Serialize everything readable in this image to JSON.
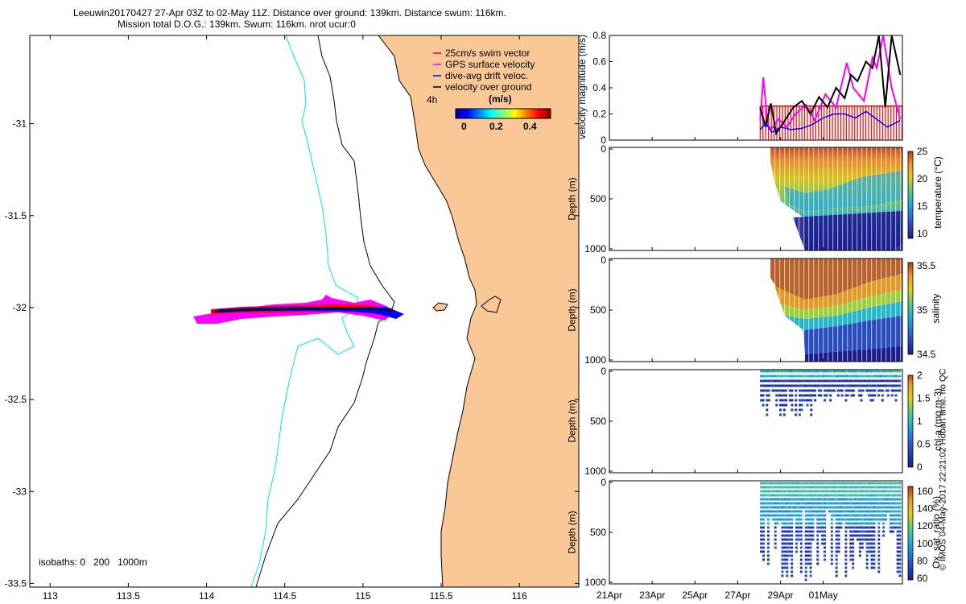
{
  "title": {
    "line1": "Leeuwin20170427 27-Apr 03Z to 02-May 11Z. Distance over ground: 139km. Distance swum: 116km.",
    "line2": "Mission total D.O.G.: 139km. Swum: 116km. nrot ucur:0"
  },
  "colors": {
    "land": "#f9c896",
    "isobath_200": "#00e0ff",
    "swim": "#ff0000",
    "gps": "#ff00ff",
    "drift": "#0000ff",
    "dog": "#000000"
  },
  "chart_data": [
    {
      "type": "map",
      "name": "glider track map",
      "x_ticks": [
        "113",
        "113.5",
        "114",
        "114.5",
        "115",
        "115.5",
        "116"
      ],
      "x_tick_values": [
        113,
        113.5,
        114,
        114.5,
        115,
        115.5,
        116
      ],
      "y_ticks": [
        "-31",
        "-31.5",
        "-32",
        "-32.5",
        "-33",
        "-33.5"
      ],
      "y_tick_values": [
        -31,
        -31.5,
        -32,
        -32.5,
        -33,
        -33.5
      ],
      "xlim": [
        112.87,
        116.38
      ],
      "ylim": [
        -33.52,
        -30.52
      ],
      "legend": [
        {
          "label": "25cm/s swim vector",
          "color": "#ff0000"
        },
        {
          "label": "GPS surface velocity",
          "color": "#ff00ff"
        },
        {
          "label": "dive-avg drift veloc.",
          "color": "#0000ff"
        },
        {
          "label": "velocity over ground",
          "color": "#000000"
        }
      ],
      "legend_extra": "4h",
      "colorbar": {
        "label": "(m/s)",
        "ticks": [
          "0",
          "0.2",
          "0.4"
        ],
        "range": [
          0,
          0.5
        ]
      },
      "isobaths_label": "isobaths: 0   200   1000m",
      "track": {
        "lon_start": 113.93,
        "lon_end": 115.25,
        "lat": -32.01
      }
    },
    {
      "type": "line",
      "name": "velocity magnitude",
      "ylabel": "velocity magnitude (m/s)",
      "ylim": [
        0,
        0.8
      ],
      "y_ticks": [
        "0",
        "0.2",
        "0.4",
        "0.6",
        "0.8"
      ],
      "y_tick_values": [
        0,
        0.2,
        0.4,
        0.6,
        0.8
      ],
      "xlim_days": [
        0,
        13.7
      ],
      "series": [
        {
          "name": "swim",
          "color": "#ff0000",
          "value": 0.26
        },
        {
          "name": "GPS surface velocity",
          "color": "#ff00ff",
          "x": [
            7.05,
            7.2,
            7.4,
            7.55,
            7.9,
            8.3,
            8.7,
            9.2,
            9.6,
            10.1,
            10.6,
            11.1,
            11.4,
            11.5,
            11.9,
            12.3,
            12.5,
            12.8,
            13.2,
            13.6
          ],
          "y": [
            0.15,
            0.48,
            0.12,
            0.08,
            0.16,
            0.1,
            0.2,
            0.27,
            0.15,
            0.35,
            0.25,
            0.59,
            0.4,
            0.38,
            0.3,
            0.63,
            0.55,
            0.8,
            0.4,
            0.16
          ]
        },
        {
          "name": "dive-avg drift veloc.",
          "color": "#0000ff",
          "x": [
            7.05,
            7.3,
            7.6,
            8.0,
            8.5,
            9.0,
            9.5,
            10.0,
            10.5,
            11.0,
            11.5,
            12.0,
            12.5,
            13.0,
            13.6
          ],
          "y": [
            0.08,
            0.13,
            0.06,
            0.1,
            0.08,
            0.09,
            0.12,
            0.17,
            0.2,
            0.2,
            0.17,
            0.22,
            0.16,
            0.1,
            0.15
          ]
        },
        {
          "name": "velocity over ground",
          "color": "#000000",
          "x": [
            7.05,
            7.3,
            7.55,
            7.8,
            8.2,
            8.6,
            9.0,
            9.4,
            9.8,
            10.2,
            10.6,
            11.0,
            11.3,
            11.6,
            12.0,
            12.3,
            12.6,
            12.9,
            13.2,
            13.6
          ],
          "y": [
            0.25,
            0.1,
            0.28,
            0.05,
            0.15,
            0.25,
            0.3,
            0.2,
            0.33,
            0.25,
            0.4,
            0.32,
            0.5,
            0.45,
            0.6,
            0.55,
            0.8,
            0.25,
            0.8,
            0.5
          ]
        }
      ]
    },
    {
      "type": "heatmap",
      "name": "temperature section",
      "ylabel": "Depth (m)",
      "y_ticks": [
        "0",
        "500",
        "1000"
      ],
      "colorbar_label": "temperature (°C)",
      "colorbar_ticks": [
        "25",
        "20",
        "15",
        "10"
      ],
      "colorbar_range": [
        8,
        25.5
      ]
    },
    {
      "type": "heatmap",
      "name": "salinity section",
      "ylabel": "Depth (m)",
      "y_ticks": [
        "0",
        "500",
        "1000"
      ],
      "colorbar_label": "salinity",
      "colorbar_ticks": [
        "35.5",
        "35",
        "34.5"
      ],
      "colorbar_range": [
        34.4,
        35.9
      ]
    },
    {
      "type": "scatter",
      "name": "chlorophyll section",
      "ylabel": "Depth (m)",
      "y_ticks": [
        "0",
        "500",
        "1000"
      ],
      "colorbar_label": "chl-a (mg m-3)",
      "colorbar_ticks": [
        "2",
        "1.5",
        "1",
        "0.5",
        "0"
      ],
      "colorbar_range": [
        0,
        2
      ]
    },
    {
      "type": "scatter",
      "name": "oxygen saturation section",
      "ylabel": "Depth (m)",
      "y_ticks": [
        "0",
        "500",
        "1000"
      ],
      "colorbar_label": "Ox. sat. ratio (%)",
      "colorbar_ticks": [
        "160",
        "140",
        "120",
        "100",
        "80",
        "60"
      ],
      "colorbar_range": [
        55,
        170
      ]
    }
  ],
  "time_axis": {
    "ticks": [
      "21Apr",
      "23Apr",
      "25Apr",
      "27Apr",
      "29Apr",
      "01May"
    ],
    "tick_days": [
      0,
      2,
      4,
      6,
      8,
      10
    ]
  },
  "footer_text": "© IMOS 04-May-2017 22:21:02 Hobart time. no QC"
}
